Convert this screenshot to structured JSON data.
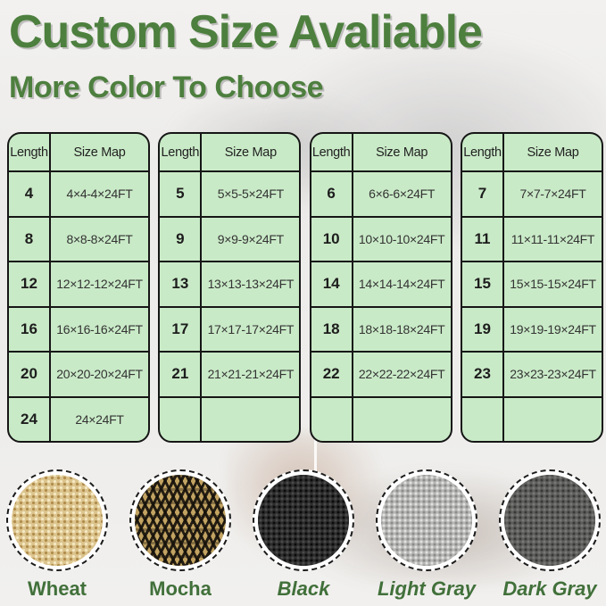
{
  "title": "Custom Size Avaliable",
  "subtitle": "More Color To Choose",
  "colors": {
    "accent_green": "#4d7f3e",
    "label_green": "#41703a",
    "table_fill": "#c9eac7",
    "table_border": "#161616"
  },
  "tables": [
    {
      "headers": [
        "Length",
        "Size Map"
      ],
      "rows": [
        [
          "4",
          "4×4-4×24FT"
        ],
        [
          "8",
          "8×8-8×24FT"
        ],
        [
          "12",
          "12×12-12×24FT"
        ],
        [
          "16",
          "16×16-16×24FT"
        ],
        [
          "20",
          "20×20-20×24FT"
        ],
        [
          "24",
          "24×24FT"
        ]
      ]
    },
    {
      "headers": [
        "Length",
        "Size Map"
      ],
      "rows": [
        [
          "5",
          "5×5-5×24FT"
        ],
        [
          "9",
          "9×9-9×24FT"
        ],
        [
          "13",
          "13×13-13×24FT"
        ],
        [
          "17",
          "17×17-17×24FT"
        ],
        [
          "21",
          "21×21-21×24FT"
        ],
        [
          "",
          ""
        ]
      ]
    },
    {
      "headers": [
        "Length",
        "Size Map"
      ],
      "rows": [
        [
          "6",
          "6×6-6×24FT"
        ],
        [
          "10",
          "10×10-10×24FT"
        ],
        [
          "14",
          "14×14-14×24FT"
        ],
        [
          "18",
          "18×18-18×24FT"
        ],
        [
          "22",
          "22×22-22×24FT"
        ],
        [
          "",
          ""
        ]
      ]
    },
    {
      "headers": [
        "Length",
        "Size Map"
      ],
      "rows": [
        [
          "7",
          "7×7-7×24FT"
        ],
        [
          "11",
          "11×11-11×24FT"
        ],
        [
          "15",
          "15×15-15×24FT"
        ],
        [
          "19",
          "19×19-19×24FT"
        ],
        [
          "23",
          "23×23-23×24FT"
        ],
        [
          "",
          ""
        ]
      ]
    }
  ],
  "swatches": [
    {
      "label": "Wheat",
      "italic": false,
      "base_color": "#dcc48e"
    },
    {
      "label": "Mocha",
      "italic": false,
      "base_color": "#c2a361"
    },
    {
      "label": "Black",
      "italic": true,
      "base_color": "#2d2d2d"
    },
    {
      "label": "Light Gray",
      "italic": true,
      "base_color": "#b6b6b4"
    },
    {
      "label": "Dark Gray",
      "italic": true,
      "base_color": "#5e5e5c"
    }
  ]
}
